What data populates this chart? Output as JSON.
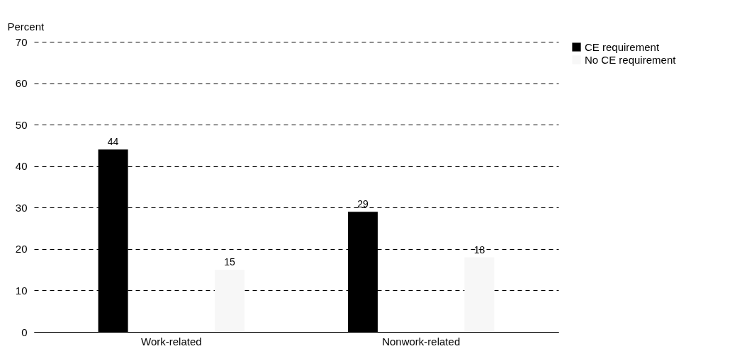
{
  "chart_data": {
    "type": "bar",
    "ylabel": "Percent",
    "categories": [
      "Work-related",
      "Nonwork-related"
    ],
    "series": [
      {
        "name": "CE requirement",
        "color": "#000000",
        "values": [
          44,
          29
        ]
      },
      {
        "name": "No CE requirement",
        "color": "#f7f7f7",
        "values": [
          15,
          18
        ]
      }
    ],
    "ylim": [
      0,
      70
    ],
    "yticks": [
      0,
      10,
      20,
      30,
      40,
      50,
      60,
      70
    ],
    "grid": "y",
    "legend": "right",
    "data_labels": true
  }
}
